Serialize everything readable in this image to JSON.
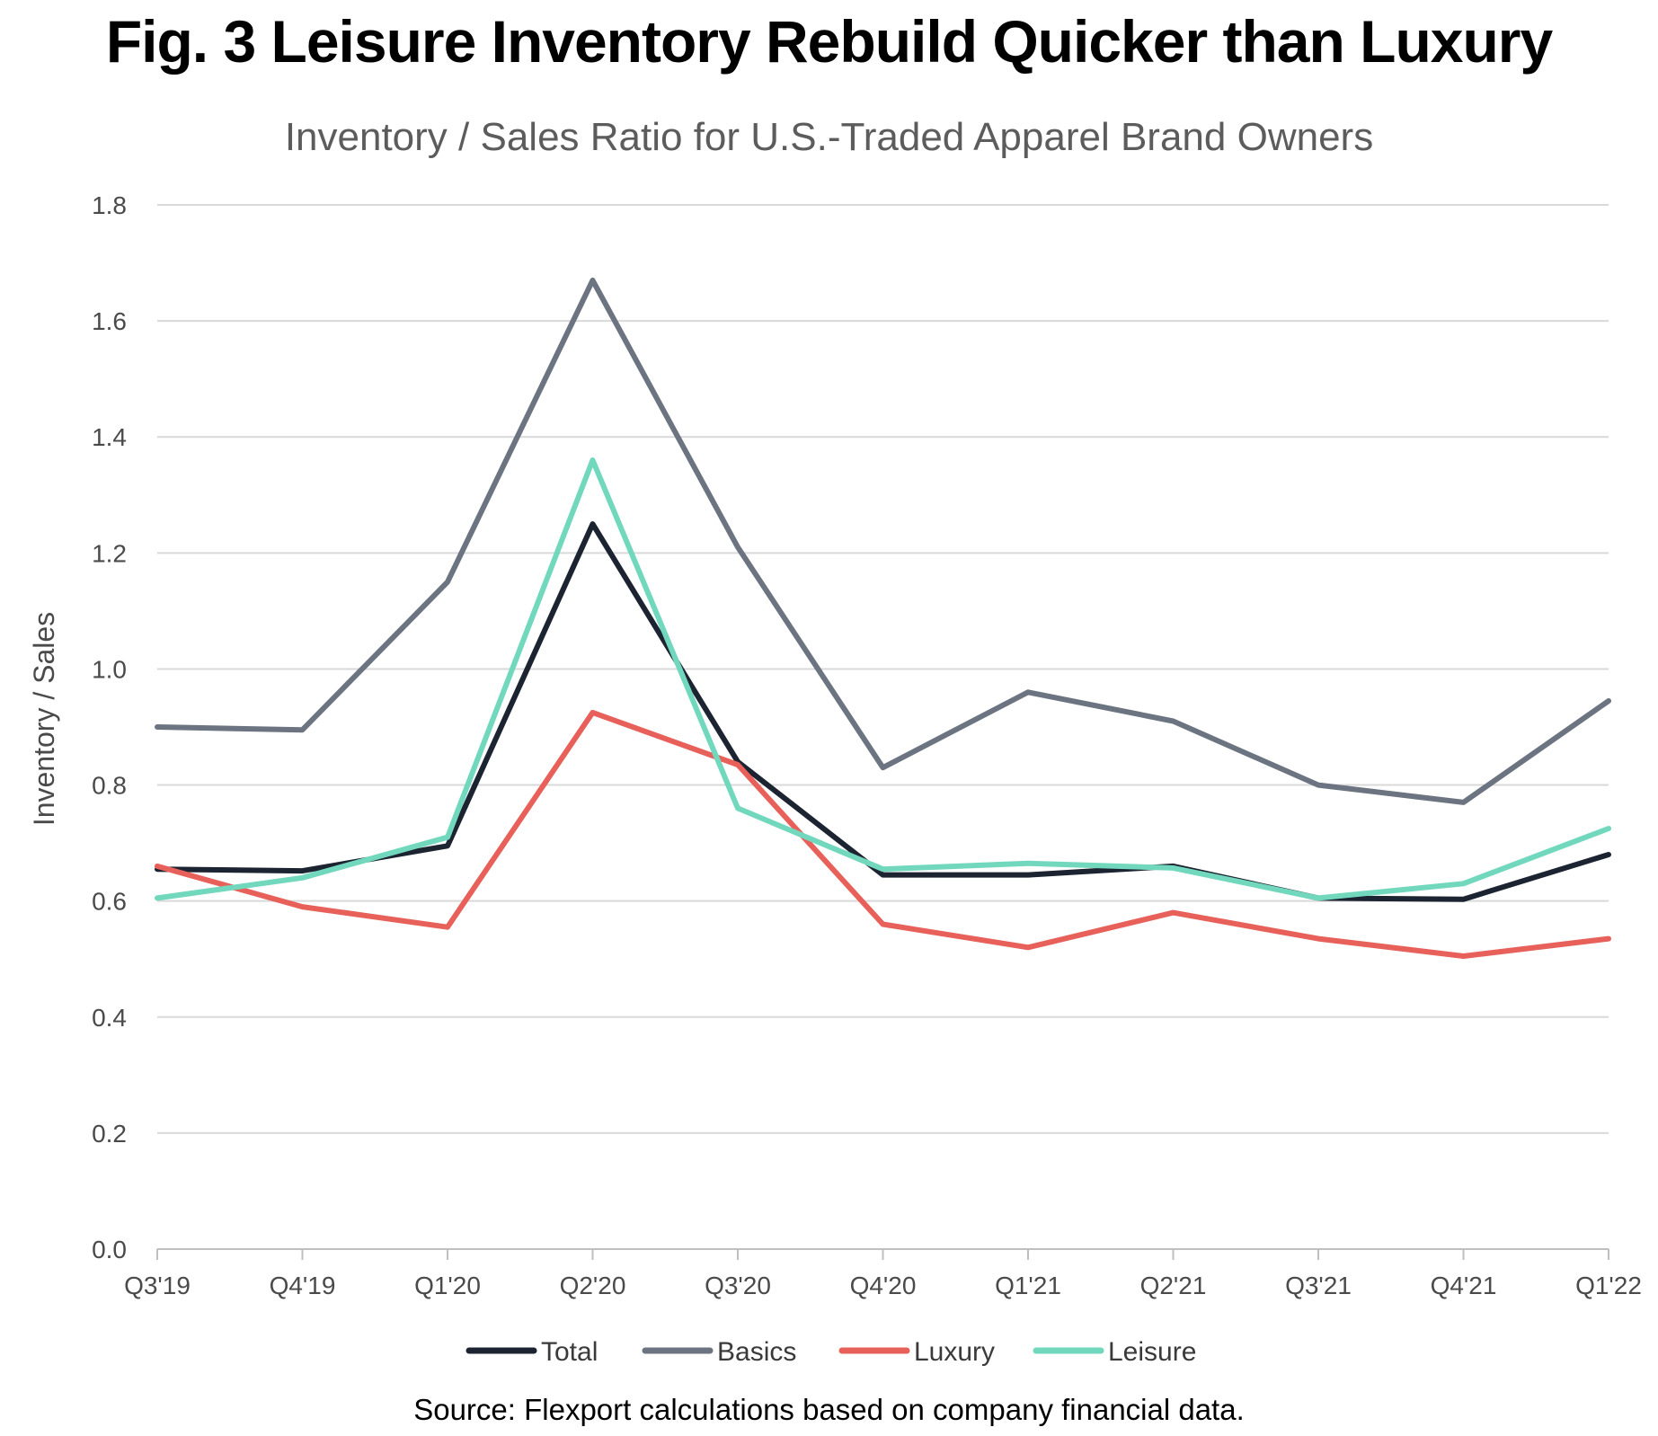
{
  "chart_data": {
    "type": "line",
    "title": "Fig. 3 Leisure Inventory Rebuild Quicker than Luxury",
    "subtitle": "Inventory / Sales Ratio for U.S.-Traded Apparel Brand Owners",
    "xlabel": "",
    "ylabel": "Inventory / Sales",
    "ylim": [
      0,
      1.8
    ],
    "yticks": [
      "0.0",
      "0.2",
      "0.4",
      "0.6",
      "0.8",
      "1.0",
      "1.2",
      "1.4",
      "1.6",
      "1.8"
    ],
    "categories": [
      "Q3'19",
      "Q4'19",
      "Q1'20",
      "Q2'20",
      "Q3'20",
      "Q4'20",
      "Q1'21",
      "Q2'21",
      "Q3'21",
      "Q4'21",
      "Q1'22"
    ],
    "series": [
      {
        "name": "Total",
        "color": "#1c2331",
        "values": [
          0.655,
          0.652,
          0.695,
          1.25,
          0.84,
          0.645,
          0.645,
          0.66,
          0.605,
          0.603,
          0.68
        ]
      },
      {
        "name": "Basics",
        "color": "#6b7480",
        "values": [
          0.9,
          0.895,
          1.15,
          1.67,
          1.21,
          0.83,
          0.96,
          0.91,
          0.8,
          0.77,
          0.945
        ]
      },
      {
        "name": "Luxury",
        "color": "#e8605a",
        "values": [
          0.66,
          0.59,
          0.555,
          0.925,
          0.835,
          0.56,
          0.52,
          0.58,
          0.535,
          0.505,
          0.535
        ]
      },
      {
        "name": "Leisure",
        "color": "#72d8bd",
        "values": [
          0.605,
          0.64,
          0.71,
          1.36,
          0.76,
          0.655,
          0.665,
          0.657,
          0.605,
          0.63,
          0.725
        ]
      }
    ],
    "legend_position": "bottom",
    "grid": true,
    "source": "Source: Flexport calculations based on company financial data."
  }
}
